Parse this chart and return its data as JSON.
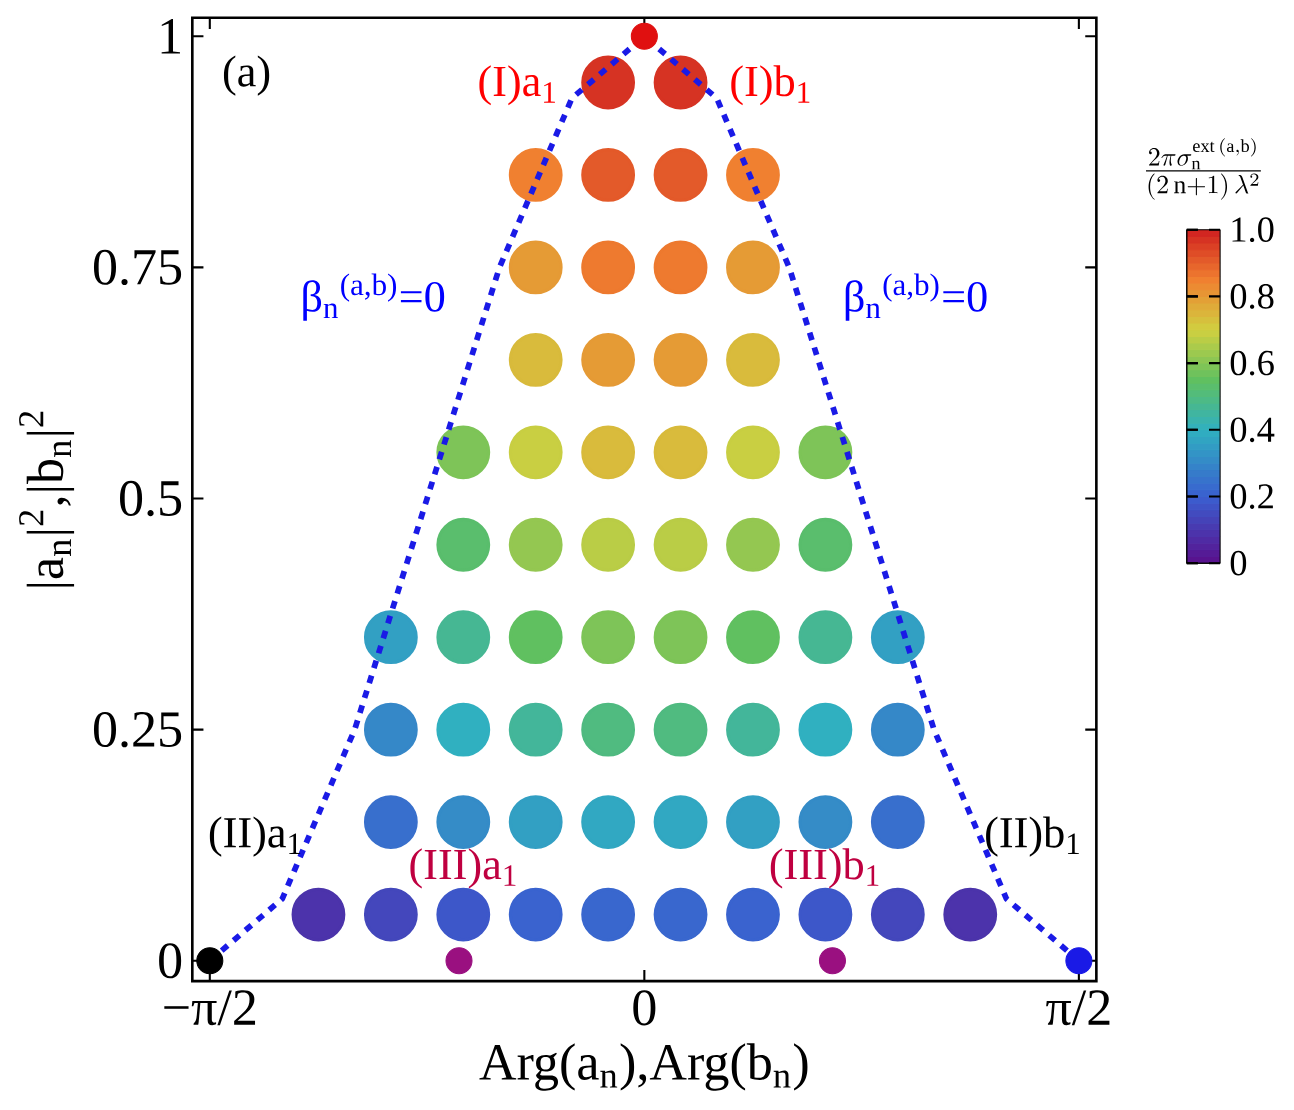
{
  "chart_data": {
    "type": "scatter",
    "xlabel": "Arg(a$_{n}$),Arg(b$_{n}$)",
    "ylabel": "|a$_{n}$|$^{2}$,|b$_{n}$|$^{2}$",
    "clabel": "\\frac{2\\pi\\sigma_{\\mathrm{n}}^{\\mathrm{ext}\\,(\\mathrm{a},\\mathrm{b})}}{(2\\,\\mathrm{n}+1)\\,\\lambda^{2}}",
    "xlim": [
      -1.634,
      1.634
    ],
    "ylim": [
      -0.022,
      1.02
    ],
    "xticks": [
      {
        "value": -1.5708,
        "label": "−π/2"
      },
      0,
      {
        "value": 1.5708,
        "label": "π/2"
      }
    ],
    "yticks": [
      0,
      0.25,
      0.5,
      0.75,
      1
    ],
    "clim": [
      0,
      1
    ],
    "cticks": [
      0,
      {
        "value": 0.2,
        "label": "0.2"
      },
      {
        "value": 0.4,
        "label": "0.4"
      },
      {
        "value": 0.6,
        "label": "0.6"
      },
      {
        "value": 0.8,
        "label": "0.8"
      },
      {
        "value": 1,
        "label": "1.0"
      }
    ],
    "series": [
      {
        "marker": "circle",
        "colors": [
          "#d63323",
          "#d63323",
          "#f08030",
          "#e35a2a",
          "#e35a2a",
          "#f08030",
          "#e59b35",
          "#ee7a2f",
          "#ee7a2f",
          "#e59b35",
          "#d9bb3c",
          "#e59b35",
          "#e59b35",
          "#d9bb3c",
          "#7ec458",
          "#c9cf42",
          "#d9bb3c",
          "#d9bb3c",
          "#c9cf42",
          "#7ec458",
          "#5abe6d",
          "#94c751",
          "#bacd46",
          "#bacd46",
          "#94c751",
          "#5abe6d",
          "#32a0c3",
          "#46b793",
          "#60c060",
          "#7ec458",
          "#7ec458",
          "#60c060",
          "#46b793",
          "#32a0c3",
          "#3588c8",
          "#30b0c0",
          "#43b69a",
          "#50bb80",
          "#50bb80",
          "#43b69a",
          "#30b0c0",
          "#3588c8",
          "#386fcd",
          "#358cc7",
          "#32a0c3",
          "#31a8c2",
          "#31a8c2",
          "#32a0c3",
          "#358cc7",
          "#386fcd",
          "#4c33ab",
          "#4447bc",
          "#3d57c9",
          "#3a63cf",
          "#3967ce",
          "#3967ce",
          "#3a63cf",
          "#3d57c9",
          "#4447bc",
          "#4c33ab"
        ],
        "x": [
          -0.1309,
          0.1309,
          -0.3927,
          -0.1309,
          0.1309,
          0.3927,
          -0.3927,
          -0.1309,
          0.1309,
          0.3927,
          -0.3927,
          -0.1309,
          0.1309,
          0.3927,
          -0.6545,
          -0.3927,
          -0.1309,
          0.1309,
          0.3927,
          0.6545,
          -0.6545,
          -0.3927,
          -0.1309,
          0.1309,
          0.3927,
          0.6545,
          -0.9163,
          -0.6545,
          -0.3927,
          -0.1309,
          0.1309,
          0.3927,
          0.6545,
          0.9163,
          -0.9163,
          -0.6545,
          -0.3927,
          -0.1309,
          0.1309,
          0.3927,
          0.6545,
          0.9163,
          -0.9163,
          -0.6545,
          -0.3927,
          -0.1309,
          0.1309,
          0.3927,
          0.6545,
          0.9163,
          -1.1781,
          -0.9163,
          -0.6545,
          -0.3927,
          -0.1309,
          0.1309,
          0.3927,
          0.6545,
          0.9163,
          1.1781
        ],
        "values": [
          0.95,
          0.95,
          0.85,
          0.85,
          0.85,
          0.85,
          0.75,
          0.75,
          0.75,
          0.75,
          0.65,
          0.65,
          0.65,
          0.65,
          0.55,
          0.55,
          0.55,
          0.55,
          0.55,
          0.55,
          0.45,
          0.45,
          0.45,
          0.45,
          0.45,
          0.45,
          0.35,
          0.35,
          0.35,
          0.35,
          0.35,
          0.35,
          0.35,
          0.35,
          0.25,
          0.25,
          0.25,
          0.25,
          0.25,
          0.25,
          0.25,
          0.25,
          0.15,
          0.15,
          0.15,
          0.15,
          0.15,
          0.15,
          0.15,
          0.15,
          0.05,
          0.05,
          0.05,
          0.05,
          0.05,
          0.05,
          0.05,
          0.05,
          0.05,
          0.05
        ],
        "cvalues": [
          0.97,
          0.97,
          0.85,
          0.91,
          0.91,
          0.85,
          0.8,
          0.86,
          0.86,
          0.8,
          0.74,
          0.8,
          0.8,
          0.74,
          0.59,
          0.69,
          0.74,
          0.74,
          0.69,
          0.59,
          0.53,
          0.62,
          0.67,
          0.67,
          0.62,
          0.53,
          0.36,
          0.47,
          0.55,
          0.59,
          0.59,
          0.55,
          0.47,
          0.36,
          0.3,
          0.4,
          0.46,
          0.5,
          0.5,
          0.46,
          0.4,
          0.3,
          0.24,
          0.31,
          0.36,
          0.38,
          0.38,
          0.36,
          0.31,
          0.24,
          0.09,
          0.14,
          0.18,
          0.21,
          0.22,
          0.22,
          0.21,
          0.18,
          0.14,
          0.09
        ]
      },
      {
        "type": "line",
        "color": "#1a1ae6",
        "line_style": "dashed",
        "marker": "none",
        "x": [
          -1.5708,
          -1.309,
          -1.0472,
          -0.7854,
          -0.5236,
          -0.2618,
          0,
          0.2618,
          0.5236,
          0.7854,
          1.0472,
          1.309,
          1.5708
        ],
        "values": [
          0,
          0.067,
          0.25,
          0.5,
          0.75,
          0.933,
          1,
          0.933,
          0.75,
          0.5,
          0.25,
          0.067,
          0
        ]
      },
      {
        "color": "#e01010",
        "marker": "circle",
        "x": [
          0
        ],
        "values": [
          1
        ]
      },
      {
        "color": "#000000",
        "marker": "circle",
        "x": [
          -1.5708
        ],
        "values": [
          0
        ]
      },
      {
        "color": "#9a1080",
        "marker": "circle",
        "x": [
          -0.67,
          0.68
        ],
        "values": [
          0,
          0
        ]
      },
      {
        "color": "#1a1ae6",
        "marker": "circle",
        "x": [
          1.5708
        ],
        "values": [
          0
        ]
      }
    ],
    "annotations": [
      "(a)",
      "(I)a$_{1}$",
      "(I)b$_{1}$",
      "β$_{n}$$^{(a,b)}$=0",
      "β$_{n}$$^{(a,b)}$=0",
      "(II)a$_{1}$",
      "(III)a$_{1}$",
      "(III)b$_{1}$",
      "(II)b$_{1}$"
    ]
  }
}
